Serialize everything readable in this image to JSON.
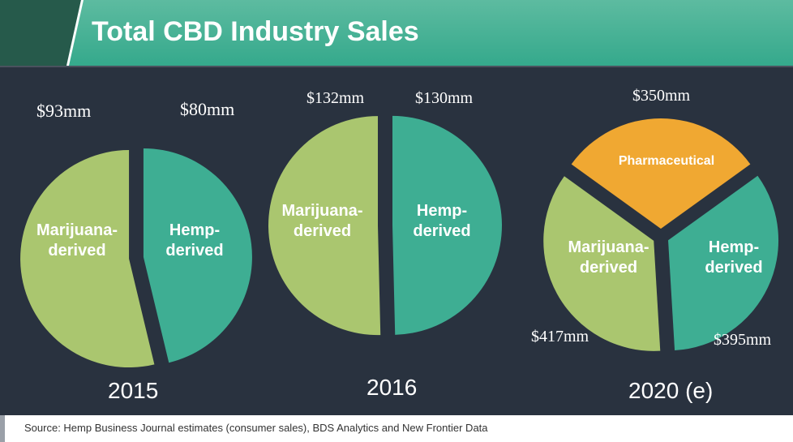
{
  "title": "Total CBD Industry Sales",
  "source": "Source: Hemp Business Journal estimates (consumer sales), BDS Analytics and New Frontier Data",
  "colors": {
    "marijuana": "#aac66f",
    "hemp": "#3eae93",
    "pharmaceutical": "#f0a832"
  },
  "chart_data": [
    {
      "type": "pie",
      "title": "2015",
      "slices": [
        {
          "label": "Hemp-derived",
          "value": 80,
          "value_label": "$80mm"
        },
        {
          "label": "Marijuana-derived",
          "value": 93,
          "value_label": "$93mm"
        }
      ]
    },
    {
      "type": "pie",
      "title": "2016",
      "slices": [
        {
          "label": "Hemp-derived",
          "value": 130,
          "value_label": "$130mm"
        },
        {
          "label": "Marijuana-derived",
          "value": 132,
          "value_label": "$132mm"
        }
      ]
    },
    {
      "type": "pie",
      "title": "2020 (e)",
      "slices": [
        {
          "label": "Pharmaceutical",
          "value": 350,
          "value_label": "$350mm"
        },
        {
          "label": "Hemp-derived",
          "value": 395,
          "value_label": "$395mm"
        },
        {
          "label": "Marijuana-derived",
          "value": 417,
          "value_label": "$417mm"
        }
      ]
    }
  ]
}
